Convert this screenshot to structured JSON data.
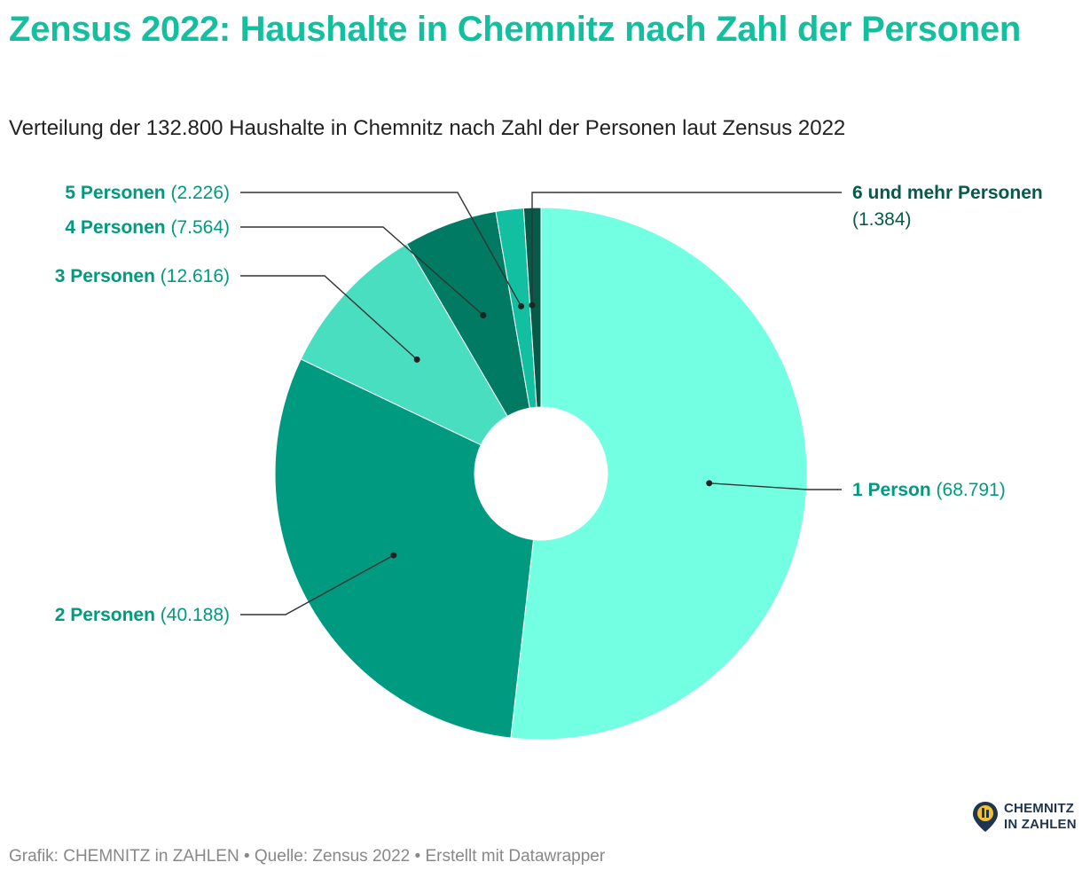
{
  "header": {
    "title": "Zensus 2022: Haushalte in Chemnitz nach Zahl der Personen",
    "subtitle": "Verteilung der 132.800 Haushalte in Chemnitz nach Zahl der Personen laut Zensus 2022"
  },
  "chart_data": {
    "type": "pie",
    "donut": true,
    "title": "Zensus 2022: Haushalte in Chemnitz nach Zahl der Personen",
    "subtitle": "Verteilung der 132.800 Haushalte in Chemnitz nach Zahl der Personen laut Zensus 2022",
    "slices": [
      {
        "label": "1 Person",
        "value": 68791,
        "value_label": "(68.791)",
        "color": "#73ffe1",
        "label_color": "#009a80"
      },
      {
        "label": "2 Personen",
        "value": 40188,
        "value_label": "(40.188)",
        "color": "#009a80",
        "label_color": "#009a80"
      },
      {
        "label": "3 Personen",
        "value": 12616,
        "value_label": "(12.616)",
        "color": "#4adec1",
        "label_color": "#009a80"
      },
      {
        "label": "4 Personen",
        "value": 7564,
        "value_label": "(7.564)",
        "color": "#007a62",
        "label_color": "#009a80"
      },
      {
        "label": "5 Personen",
        "value": 2226,
        "value_label": "(2.226)",
        "color": "#12bfa0",
        "label_color": "#009a80"
      },
      {
        "label": "6 und mehr Personen",
        "value": 1384,
        "value_label": "(1.384)",
        "color": "#065a48",
        "label_color": "#065a48"
      }
    ]
  },
  "footer": {
    "text": "Grafik: CHEMNITZ in ZAHLEN • Quelle: Zensus 2022 • Erstellt mit Datawrapper"
  },
  "logo": {
    "line1": "CHEMNITZ",
    "line2": "IN ZAHLEN"
  },
  "colors": {
    "title": "#14bfa0",
    "logo": "#1f3450"
  }
}
